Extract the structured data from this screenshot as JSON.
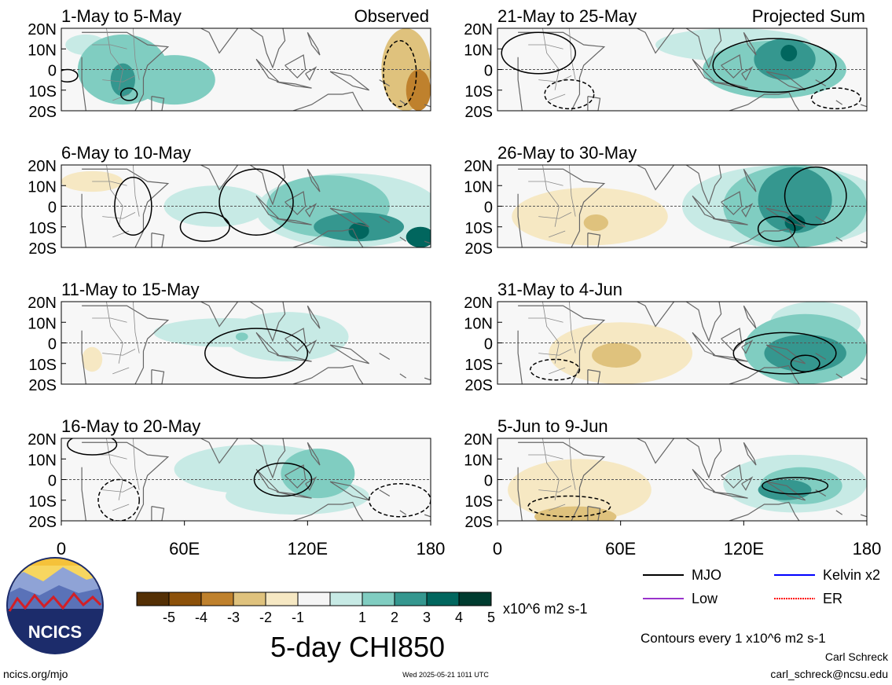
{
  "colors": {
    "scale": [
      "#543005",
      "#8c510a",
      "#bf812d",
      "#dfc27d",
      "#f6e8c3",
      "#f5f5f5",
      "#c7eae5",
      "#80cdc1",
      "#35978f",
      "#01665e",
      "#003c30"
    ],
    "neg": [
      "#543005",
      "#8c510a",
      "#bf812d",
      "#dfc27d",
      "#f6e8c3"
    ],
    "pos": [
      "#c7eae5",
      "#80cdc1",
      "#35978f",
      "#01665e",
      "#003c30"
    ],
    "mjo": "#000000",
    "kelvin": "#0000ff",
    "low": "#9933cc",
    "er": "#ff0000",
    "coast": "#666666"
  },
  "chart_data": {
    "type": "heatmap",
    "variable": "5-day CHI850",
    "units": "x10^6 m2 s-1",
    "x_axis": {
      "range": [
        0,
        180
      ],
      "ticks": [
        "0",
        "60E",
        "120E",
        "180"
      ]
    },
    "y_axis": {
      "range": [
        -20,
        20
      ],
      "ticks": [
        "20N",
        "10N",
        "0",
        "10S",
        "20S"
      ]
    },
    "colorbar": {
      "ticks": [
        "-5",
        "-4",
        "-3",
        "-2",
        "-1",
        "1",
        "2",
        "3",
        "4",
        "5"
      ]
    },
    "panels": [
      {
        "title": "1-May to 5-May",
        "tag": "Observed",
        "blobs": [
          {
            "lon": 30,
            "lat": 0,
            "rx": 22,
            "ry": 17,
            "v": 2
          },
          {
            "lon": 55,
            "lat": -5,
            "rx": 20,
            "ry": 12,
            "v": 2
          },
          {
            "lon": 30,
            "lat": -5,
            "rx": 6,
            "ry": 8,
            "v": 3
          },
          {
            "lon": 12,
            "lat": 12,
            "rx": 10,
            "ry": 5,
            "v": 1
          },
          {
            "lon": 168,
            "lat": 0,
            "rx": 12,
            "ry": 20,
            "v": -2
          },
          {
            "lon": 174,
            "lat": -10,
            "rx": 6,
            "ry": 10,
            "v": -3
          }
        ],
        "contours": [
          {
            "lon": 33,
            "lat": -12,
            "rx": 4,
            "ry": 3,
            "style": "solid"
          },
          {
            "lon": 3,
            "lat": -3,
            "rx": 5,
            "ry": 3,
            "style": "solid"
          },
          {
            "lon": 165,
            "lat": -2,
            "rx": 8,
            "ry": 16,
            "style": "dashed"
          }
        ]
      },
      {
        "title": "21-May to 25-May",
        "tag": "Projected Sum",
        "blobs": [
          {
            "lon": 115,
            "lat": 12,
            "rx": 38,
            "ry": 8,
            "v": 1
          },
          {
            "lon": 135,
            "lat": 0,
            "rx": 35,
            "ry": 14,
            "v": 2
          },
          {
            "lon": 140,
            "lat": 5,
            "rx": 15,
            "ry": 10,
            "v": 3
          },
          {
            "lon": 142,
            "lat": 8,
            "rx": 4,
            "ry": 4,
            "v": 4
          }
        ],
        "contours": [
          {
            "lon": 135,
            "lat": 2,
            "rx": 30,
            "ry": 13,
            "style": "solid"
          },
          {
            "lon": 20,
            "lat": 8,
            "rx": 18,
            "ry": 10,
            "style": "solid"
          },
          {
            "lon": 35,
            "lat": -12,
            "rx": 12,
            "ry": 7,
            "style": "dashed"
          },
          {
            "lon": 165,
            "lat": -14,
            "rx": 12,
            "ry": 5,
            "style": "dashed"
          }
        ]
      },
      {
        "title": "6-May to 10-May",
        "tag": "",
        "blobs": [
          {
            "lon": 140,
            "lat": -2,
            "rx": 45,
            "ry": 18,
            "v": 1
          },
          {
            "lon": 130,
            "lat": 0,
            "rx": 30,
            "ry": 15,
            "v": 2
          },
          {
            "lon": 145,
            "lat": -10,
            "rx": 22,
            "ry": 7,
            "v": 3
          },
          {
            "lon": 145,
            "lat": -12,
            "rx": 5,
            "ry": 4,
            "v": 4
          },
          {
            "lon": 175,
            "lat": -15,
            "rx": 7,
            "ry": 5,
            "v": 4
          },
          {
            "lon": 75,
            "lat": 0,
            "rx": 25,
            "ry": 10,
            "v": 1
          },
          {
            "lon": 15,
            "lat": 12,
            "rx": 15,
            "ry": 5,
            "v": -1
          }
        ],
        "contours": [
          {
            "lon": 70,
            "lat": -10,
            "rx": 12,
            "ry": 7,
            "style": "solid"
          },
          {
            "lon": 35,
            "lat": 0,
            "rx": 9,
            "ry": 14,
            "style": "solid"
          },
          {
            "lon": 95,
            "lat": 2,
            "rx": 18,
            "ry": 16,
            "style": "solid"
          }
        ]
      },
      {
        "title": "26-May to 30-May",
        "tag": "",
        "blobs": [
          {
            "lon": 145,
            "lat": 0,
            "rx": 35,
            "ry": 20,
            "v": 2
          },
          {
            "lon": 145,
            "lat": 3,
            "rx": 18,
            "ry": 16,
            "v": 3
          },
          {
            "lon": 145,
            "lat": -8,
            "rx": 5,
            "ry": 4,
            "v": 4
          },
          {
            "lon": 140,
            "lat": 0,
            "rx": 50,
            "ry": 20,
            "v": 1
          },
          {
            "lon": 45,
            "lat": -5,
            "rx": 38,
            "ry": 14,
            "v": -1
          },
          {
            "lon": 48,
            "lat": -8,
            "rx": 6,
            "ry": 4,
            "v": -2
          }
        ],
        "contours": [
          {
            "lon": 136,
            "lat": -11,
            "rx": 9,
            "ry": 6,
            "style": "solid"
          },
          {
            "lon": 155,
            "lat": 5,
            "rx": 15,
            "ry": 14,
            "style": "solid"
          }
        ]
      },
      {
        "title": "11-May to 15-May",
        "tag": "",
        "blobs": [
          {
            "lon": 80,
            "lat": 5,
            "rx": 35,
            "ry": 7,
            "v": 1
          },
          {
            "lon": 110,
            "lat": 3,
            "rx": 30,
            "ry": 12,
            "v": 1
          },
          {
            "lon": 15,
            "lat": -8,
            "rx": 5,
            "ry": 6,
            "v": -1
          },
          {
            "lon": 88,
            "lat": 3,
            "rx": 3,
            "ry": 2,
            "v": 2
          }
        ],
        "contours": [
          {
            "lon": 95,
            "lat": -5,
            "rx": 25,
            "ry": 12,
            "style": "solid"
          }
        ]
      },
      {
        "title": "31-May to 4-Jun",
        "tag": "",
        "blobs": [
          {
            "lon": 60,
            "lat": -5,
            "rx": 35,
            "ry": 15,
            "v": -1
          },
          {
            "lon": 58,
            "lat": -6,
            "rx": 12,
            "ry": 6,
            "v": -2
          },
          {
            "lon": 150,
            "lat": -3,
            "rx": 30,
            "ry": 17,
            "v": 2
          },
          {
            "lon": 150,
            "lat": -5,
            "rx": 20,
            "ry": 9,
            "v": 3
          },
          {
            "lon": 155,
            "lat": 10,
            "rx": 22,
            "ry": 10,
            "v": 1
          }
        ],
        "contours": [
          {
            "lon": 140,
            "lat": -5,
            "rx": 25,
            "ry": 10,
            "style": "solid"
          },
          {
            "lon": 150,
            "lat": -10,
            "rx": 7,
            "ry": 4,
            "style": "solid"
          },
          {
            "lon": 28,
            "lat": -13,
            "rx": 12,
            "ry": 5,
            "style": "dashed"
          }
        ]
      },
      {
        "title": "16-May to 20-May",
        "tag": "",
        "blobs": [
          {
            "lon": 95,
            "lat": 5,
            "rx": 40,
            "ry": 12,
            "v": 1
          },
          {
            "lon": 125,
            "lat": 3,
            "rx": 18,
            "ry": 12,
            "v": 2
          },
          {
            "lon": 115,
            "lat": -8,
            "rx": 35,
            "ry": 9,
            "v": 1
          }
        ],
        "contours": [
          {
            "lon": 108,
            "lat": 0,
            "rx": 14,
            "ry": 8,
            "style": "solid"
          },
          {
            "lon": 15,
            "lat": 17,
            "rx": 12,
            "ry": 5,
            "style": "solid"
          },
          {
            "lon": 28,
            "lat": -10,
            "rx": 10,
            "ry": 10,
            "style": "dashed"
          },
          {
            "lon": 165,
            "lat": -10,
            "rx": 15,
            "ry": 8,
            "style": "dashed"
          }
        ]
      },
      {
        "title": "5-Jun to 9-Jun",
        "tag": "",
        "blobs": [
          {
            "lon": 145,
            "lat": -2,
            "rx": 35,
            "ry": 14,
            "v": 1
          },
          {
            "lon": 148,
            "lat": -3,
            "rx": 20,
            "ry": 9,
            "v": 2
          },
          {
            "lon": 140,
            "lat": -5,
            "rx": 13,
            "ry": 5,
            "v": 3
          },
          {
            "lon": 40,
            "lat": -5,
            "rx": 35,
            "ry": 15,
            "v": -1
          },
          {
            "lon": 38,
            "lat": -18,
            "rx": 20,
            "ry": 5,
            "v": -2
          }
        ],
        "contours": [
          {
            "lon": 145,
            "lat": -3,
            "rx": 16,
            "ry": 4,
            "style": "solid"
          },
          {
            "lon": 35,
            "lat": -13,
            "rx": 20,
            "ry": 5,
            "style": "dashed"
          }
        ]
      }
    ],
    "legend": {
      "entries": [
        {
          "name": "MJO",
          "color": "#000000"
        },
        {
          "name": "Kelvin x2",
          "color": "#0000ff"
        },
        {
          "name": "Low",
          "color": "#9933cc"
        },
        {
          "name": "ER",
          "color": "#ff0000"
        }
      ],
      "note": "Contours every 1 x10^6 m2 s-1"
    }
  },
  "footer": {
    "logo_text": "NCICS",
    "site": "ncics.org/mjo",
    "timestamp": "Wed 2025-05-21 1011 UTC",
    "author": "Carl Schreck",
    "email": "carl_schreck@ncsu.edu"
  }
}
